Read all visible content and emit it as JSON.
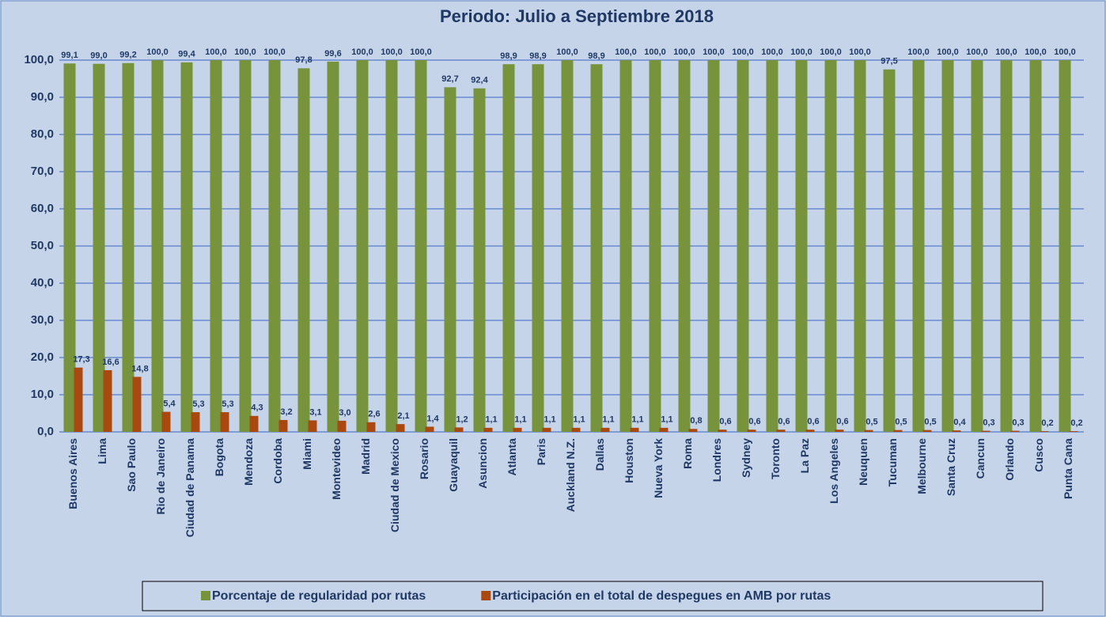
{
  "chart_data": {
    "type": "bar",
    "title": "Periodo: Julio  a  Septiembre   2018",
    "categories": [
      "Buenos Aires",
      "Lima",
      "Sao Paulo",
      "Rio de Janeiro",
      "Ciudad de Panama",
      "Bogota",
      "Mendoza",
      "Cordoba",
      "Miami",
      "Montevideo",
      "Madrid",
      "Ciudad de Mexico",
      "Rosario",
      "Guayaquil",
      "Asuncion",
      "Atlanta",
      "Paris",
      "Auckland N.Z.",
      "Dallas",
      "Houston",
      "Nueva York",
      "Roma",
      "Londres",
      "Sydney",
      "Toronto",
      "La Paz",
      "Los Angeles",
      "Neuquen",
      "Tucuman",
      "Melbourne",
      "Santa Cruz",
      "Cancun",
      "Orlando",
      "Cusco",
      "Punta Cana"
    ],
    "series": [
      {
        "name": "Porcentaje de regularidad por rutas",
        "color": "#77933c",
        "values": [
          99.1,
          99.0,
          99.2,
          100,
          99.4,
          100,
          100,
          100,
          97.8,
          99.6,
          100,
          100,
          100,
          92.7,
          92.4,
          98.9,
          98.9,
          100,
          98.9,
          100,
          100,
          100,
          100,
          100,
          100,
          100,
          100,
          100,
          97.5,
          100,
          100,
          100,
          100,
          100,
          100
        ],
        "value_labels": [
          "99,1",
          "99,0",
          "99,2",
          "100,0",
          "99,4",
          "100,0",
          "100,0",
          "100,0",
          "97,8",
          "99,6",
          "100,0",
          "100,0",
          "100,0",
          "92,7",
          "92,4",
          "98,9",
          "98,9",
          "100,0",
          "98,9",
          "100,0",
          "100,0",
          "100,0",
          "100,0",
          "100,0",
          "100,0",
          "100,0",
          "100,0",
          "100,0",
          "97,5",
          "100,0",
          "100,0",
          "100,0",
          "100,0",
          "100,0",
          "100,0"
        ]
      },
      {
        "name": "Participación en el total de despegues en AMB por rutas",
        "color": "#a9480f",
        "values": [
          17.3,
          16.6,
          14.8,
          5.4,
          5.3,
          5.3,
          4.3,
          3.2,
          3.1,
          3.0,
          2.6,
          2.1,
          1.4,
          1.2,
          1.1,
          1.1,
          1.1,
          1.1,
          1.1,
          1.1,
          1.1,
          0.8,
          0.6,
          0.6,
          0.6,
          0.6,
          0.6,
          0.5,
          0.5,
          0.5,
          0.4,
          0.3,
          0.3,
          0.2,
          0.2
        ],
        "value_labels": [
          "17,3",
          "16,6",
          "14,8",
          "5,4",
          "5,3",
          "5,3",
          "4,3",
          "3,2",
          "3,1",
          "3,0",
          "2,6",
          "2,1",
          "1,4",
          "1,2",
          "1,1",
          "1,1",
          "1,1",
          "1,1",
          "1,1",
          "1,1",
          "1,1",
          "0,8",
          "0,6",
          "0,6",
          "0,6",
          "0,6",
          "0,6",
          "0,5",
          "0,5",
          "0,5",
          "0,4",
          "0,3",
          "0,3",
          "0,2",
          "0,2"
        ]
      }
    ],
    "ylim": [
      0,
      100
    ],
    "yticks": [
      {
        "value": 0,
        "label": "0,0"
      },
      {
        "value": 10,
        "label": "10,0"
      },
      {
        "value": 20,
        "label": "20,0"
      },
      {
        "value": 30,
        "label": "30,0"
      },
      {
        "value": 40,
        "label": "40,0"
      },
      {
        "value": 50,
        "label": "50,0"
      },
      {
        "value": 60,
        "label": "60,0"
      },
      {
        "value": 70,
        "label": "70,0"
      },
      {
        "value": 80,
        "label": "80,0"
      },
      {
        "value": 90,
        "label": "90,0"
      },
      {
        "value": 100,
        "label": "100,0"
      }
    ],
    "grid": true
  }
}
